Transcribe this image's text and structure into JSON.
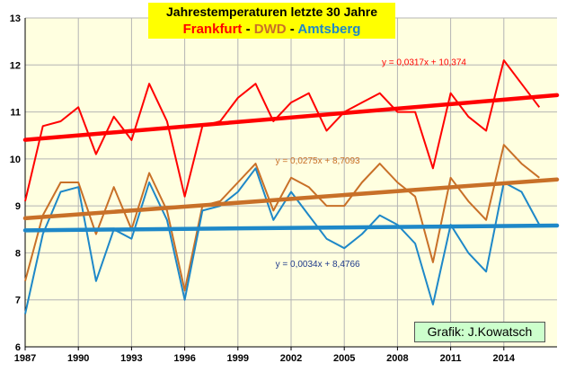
{
  "chart_data": {
    "type": "line",
    "title_main": "Jahrestemperaturen letzte 30 Jahre",
    "title_series": [
      {
        "text": "Frankfurt",
        "color": "#ff0000"
      },
      {
        "text": " - ",
        "color": "#000000"
      },
      {
        "text": "DWD",
        "color": "#c87028"
      },
      {
        "text": " - ",
        "color": "#000000"
      },
      {
        "text": "Amtsberg",
        "color": "#1e88c8"
      }
    ],
    "credit": "Grafik: J.Kowatsch",
    "xlim": [
      1987,
      2017
    ],
    "ylim": [
      6,
      13
    ],
    "x_ticks": [
      "1987",
      "1990",
      "1993",
      "1996",
      "1999",
      "2002",
      "2005",
      "2008",
      "2011",
      "2014"
    ],
    "y_ticks": [
      "6",
      "7",
      "8",
      "9",
      "10",
      "11",
      "12",
      "13"
    ],
    "grid": true,
    "x": [
      1987,
      1988,
      1989,
      1990,
      1991,
      1992,
      1993,
      1994,
      1995,
      1996,
      1997,
      1998,
      1999,
      2000,
      2001,
      2002,
      2003,
      2004,
      2005,
      2006,
      2007,
      2008,
      2009,
      2010,
      2011,
      2012,
      2013,
      2014,
      2015,
      2016
    ],
    "series": [
      {
        "color": "#ff0000",
        "values": [
          9.1,
          10.7,
          10.8,
          11.1,
          10.1,
          10.9,
          10.4,
          11.6,
          10.8,
          9.2,
          10.7,
          10.8,
          11.3,
          11.6,
          10.8,
          11.2,
          11.4,
          10.6,
          11.0,
          11.2,
          11.4,
          11.0,
          11.0,
          9.8,
          11.4,
          10.9,
          10.6,
          12.1,
          11.6,
          11.1
        ]
      },
      {
        "color": "#c87028",
        "values": [
          7.4,
          8.8,
          9.5,
          9.5,
          8.4,
          9.4,
          8.5,
          9.7,
          8.9,
          7.2,
          9.0,
          9.1,
          9.5,
          9.9,
          8.9,
          9.6,
          9.4,
          9.0,
          9.0,
          9.5,
          9.9,
          9.5,
          9.2,
          7.8,
          9.6,
          9.1,
          8.7,
          10.3,
          9.9,
          9.6
        ]
      },
      {
        "color": "#1e88c8",
        "values": [
          6.7,
          8.4,
          9.3,
          9.4,
          7.4,
          8.5,
          8.3,
          9.5,
          8.7,
          7.0,
          8.9,
          9.0,
          9.3,
          9.8,
          8.7,
          9.3,
          8.8,
          8.3,
          8.1,
          8.4,
          8.8,
          8.6,
          8.2,
          6.9,
          8.6,
          8.0,
          7.6,
          9.5,
          9.3,
          8.6
        ]
      }
    ],
    "trendlines": [
      {
        "color": "#ff0000",
        "slope": 0.0317,
        "intercept": 10.374,
        "label": "y = 0,0317x + 10,374",
        "label_color": "#ff0000"
      },
      {
        "color": "#c87028",
        "slope": 0.0275,
        "intercept": 8.7093,
        "label": "y = 0,0275x + 8,7093",
        "label_color": "#c87028"
      },
      {
        "color": "#1e88c8",
        "slope": 0.0034,
        "intercept": 8.4766,
        "label": "y = 0,0034x + 8,4766",
        "label_color": "#1f3a8a"
      }
    ],
    "colors": {
      "plot_bg": "#ffffe0",
      "grid": "#b4b4b4"
    }
  }
}
